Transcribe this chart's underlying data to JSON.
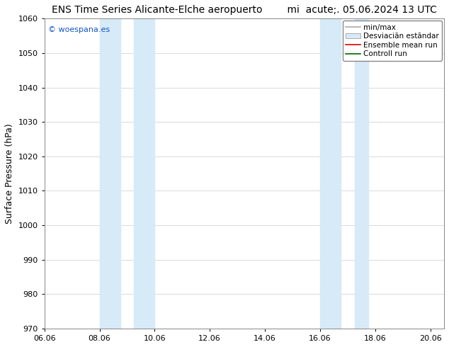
{
  "title_left": "ENS Time Series Alicante-Elche aeropuerto",
  "title_right": "mi  acute;. 05.06.2024 13 UTC",
  "ylabel": "Surface Pressure (hPa)",
  "ylim": [
    970,
    1060
  ],
  "yticks": [
    970,
    980,
    990,
    1000,
    1010,
    1020,
    1030,
    1040,
    1050,
    1060
  ],
  "xlim_start": 0.0,
  "xlim_end": 14.5,
  "xtick_labels": [
    "06.06",
    "08.06",
    "10.06",
    "12.06",
    "14.06",
    "16.06",
    "18.06",
    "20.06"
  ],
  "xtick_positions": [
    0,
    2,
    4,
    6,
    8,
    10,
    12,
    14
  ],
  "shaded_bands": [
    {
      "x_start": 2.0,
      "x_end": 2.75,
      "color": "#d6eaf8"
    },
    {
      "x_start": 3.25,
      "x_end": 4.0,
      "color": "#d6eaf8"
    },
    {
      "x_start": 10.0,
      "x_end": 10.75,
      "color": "#d6eaf8"
    },
    {
      "x_start": 11.25,
      "x_end": 11.75,
      "color": "#d6eaf8"
    }
  ],
  "watermark_text": "© woespana.es",
  "watermark_color": "#1155cc",
  "background_color": "#ffffff",
  "grid_color": "#cccccc",
  "title_fontsize": 10,
  "axis_fontsize": 9,
  "tick_fontsize": 8,
  "legend_fontsize": 7.5
}
